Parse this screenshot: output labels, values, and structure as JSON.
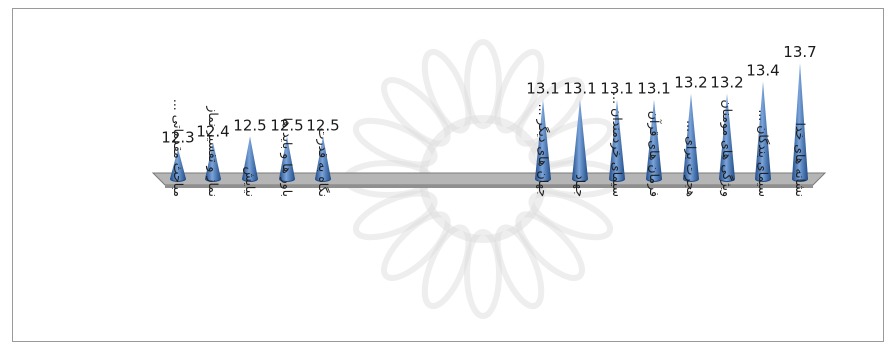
{
  "chart_data": {
    "type": "bar",
    "bar_shape": "cone",
    "categories": [
      "مباحث مقدماتی ...",
      "نماز و تفسیر نماز",
      "نیایش",
      "باور ها و باید ها",
      "نگاه به قدرت",
      "جهان های دیگر ...",
      "جهاد",
      "سیمای خردمندان ...",
      "فرمان های قرآن",
      "هجرت برای ...",
      "ویژگی های مومنان",
      "سیمای بندگان ...",
      "نشانه های خدا"
    ],
    "series": [
      {
        "values": [
          12.3,
          12.4,
          12.5,
          12.5,
          12.5,
          13.1,
          13.1,
          13.1,
          13.1,
          13.2,
          13.2,
          13.4,
          13.7
        ]
      }
    ],
    "data_labels": [
      "12.3",
      "12.4",
      "12.5",
      "12.5",
      "12.5",
      "13.1",
      "13.1",
      "13.1",
      "13.1",
      "13.2",
      "13.2",
      "13.4",
      "13.7"
    ],
    "title": "",
    "xlabel": "",
    "ylabel": "",
    "ylim": [
      11.8,
      13.7
    ],
    "grid": false,
    "legend": "none",
    "colors": {
      "cone_dark": "#1f4a86",
      "cone_light": "#7aa4da",
      "floor": "#b5b5b5",
      "floor_edge": "#7a7a7a",
      "watermark": "#d9d9d9",
      "frame": "#9a9a9a"
    }
  }
}
